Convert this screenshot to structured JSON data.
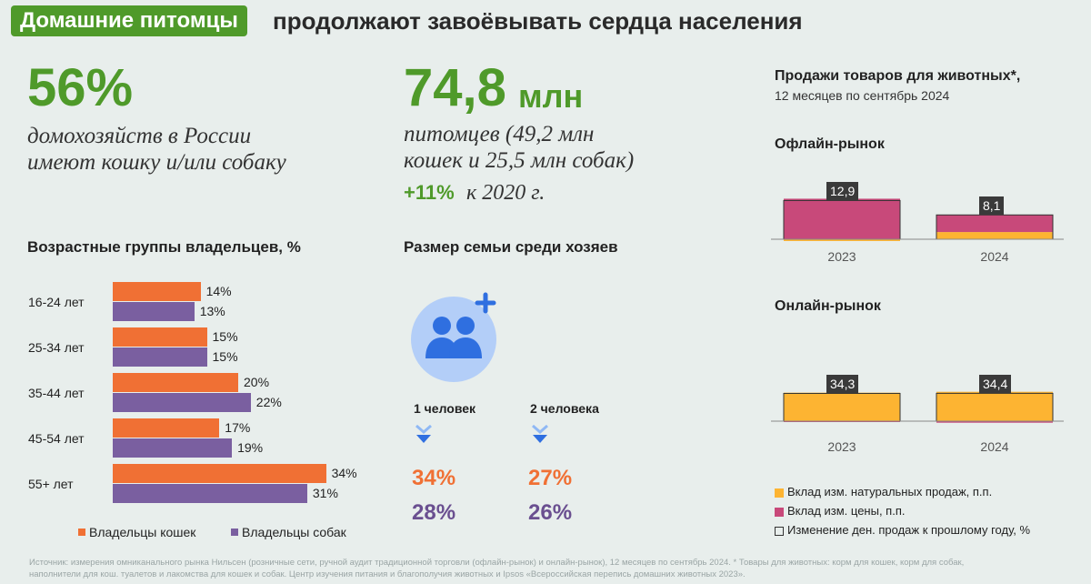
{
  "header": {
    "badge": "Домашние питомцы",
    "rest": "продолжают завоёвывать сердца населения"
  },
  "stat1": {
    "value": "56%",
    "line1": "домохозяйств в России",
    "line2": "имеют кошку и/или собаку"
  },
  "stat2": {
    "value": "74,8",
    "unit": "млн",
    "line1": "питомцев (49,2 млн",
    "line2": "кошек и 25,5 млн собак)",
    "growth": "+11%",
    "growth_suffix": "к 2020 г."
  },
  "age_section": {
    "title": "Возрастные группы владельцев, %"
  },
  "family_section": {
    "title": "Размер семьи среди хозяев",
    "col1": {
      "label": "1 человек",
      "cats": "34%",
      "dogs": "28%"
    },
    "col2": {
      "label": "2 человека",
      "cats": "27%",
      "dogs": "26%"
    }
  },
  "sales": {
    "title": "Продажи товаров для животных*,",
    "subtitle": "12 месяцев по сентябрь 2024",
    "offline_title": "Офлайн-рынок",
    "online_title": "Онлайн-рынок",
    "legend": {
      "volume": "Вклад изм. натуральных продаж, п.п.",
      "price": "Вклад изм. цены, п.п.",
      "total": "Изменение ден. продаж к прошлому году, %"
    }
  },
  "colors": {
    "green": "#4f9a2a",
    "orange": "#f07034",
    "purple": "#7a5fa0",
    "yellow": "#fdb432",
    "crimson": "#c8497a"
  },
  "footnote": {
    "line1": "Источник: измерения омниканального рынка Нильсен (розничные сети, ручной аудит традиционной торговли (офлайн-рынок) и онлайн-рынок), 12 месяцев по сентябрь 2024. * Товары для животных: корм для кошек, корм для собак,",
    "line2": "наполнители для кош. туалетов и лакомства для кошек и собак. Центр изучения питания и благополучия животных и Ipsos «Всероссийская перепись домашних животных 2023»."
  },
  "chart_data": [
    {
      "type": "bar",
      "orientation": "horizontal",
      "title": "Возрастные группы владельцев, %",
      "categories": [
        "16-24 лет",
        "25-34 лет",
        "35-44 лет",
        "45-54 лет",
        "55+ лет"
      ],
      "series": [
        {
          "name": "Владельцы кошек",
          "values": [
            14,
            15,
            20,
            17,
            34
          ],
          "labels": [
            "14%",
            "15%",
            "20%",
            "17%",
            "34%"
          ]
        },
        {
          "name": "Владельцы собак",
          "values": [
            13,
            15,
            22,
            19,
            31
          ],
          "labels": [
            "13%",
            "15%",
            "22%",
            "19%",
            "31%"
          ]
        }
      ],
      "xlim": [
        0,
        34
      ]
    },
    {
      "type": "bar",
      "stacked": true,
      "title": "Офлайн-рынок",
      "categories": [
        "2023",
        "2024"
      ],
      "series": [
        {
          "name": "Вклад изм. натуральных продаж, п.п.",
          "values": [
            -0.6,
            2.4
          ]
        },
        {
          "name": "Вклад изм. цены, п.п.",
          "values": [
            13.5,
            5.7
          ]
        }
      ],
      "totals": [
        12.9,
        8.1
      ],
      "total_labels": [
        "12,9",
        "8,1"
      ],
      "ylim": [
        -2,
        16
      ]
    },
    {
      "type": "bar",
      "stacked": true,
      "title": "Онлайн-рынок",
      "categories": [
        "2023",
        "2024"
      ],
      "series": [
        {
          "name": "Вклад изм. натуральных продаж, п.п.",
          "values": [
            35.2,
            36.3
          ]
        },
        {
          "name": "Вклад изм. цены, п.п.",
          "values": [
            -0.9,
            -1.9
          ]
        }
      ],
      "totals": [
        34.3,
        34.4
      ],
      "total_labels": [
        "34,3",
        "34,4"
      ],
      "ylim": [
        -4,
        38
      ]
    }
  ]
}
